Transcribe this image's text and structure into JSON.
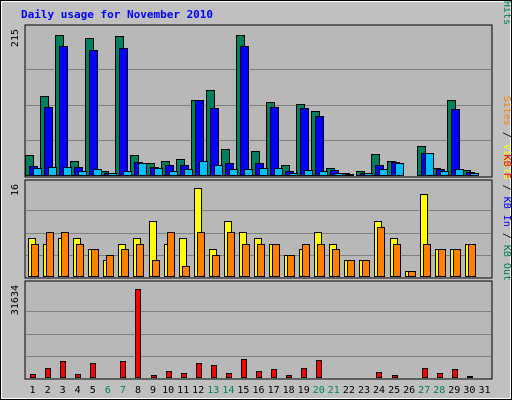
{
  "chart_data": {
    "type": "bar",
    "title": "Daily usage for November 2010",
    "colors": {
      "background": "#c0c0c0",
      "plot": "#b8b8b8",
      "title": "#0000ff",
      "hits": "#00805c",
      "files": "#0000ff",
      "pages": "#00c0ff",
      "visits": "#ffff00",
      "sites": "#ff8000",
      "kbytes": "#ff0000",
      "weekend_label": "#00805c",
      "weekday_label": "#000000"
    },
    "x": {
      "days": [
        "1",
        "2",
        "3",
        "4",
        "5",
        "6",
        "7",
        "8",
        "9",
        "10",
        "11",
        "12",
        "13",
        "14",
        "15",
        "16",
        "17",
        "18",
        "19",
        "20",
        "21",
        "22",
        "23",
        "24",
        "25",
        "26",
        "27",
        "28",
        "29",
        "30",
        "31"
      ],
      "weekend_days": [
        "6",
        "7",
        "13",
        "14",
        "20",
        "21",
        "27",
        "28"
      ]
    },
    "panels": [
      {
        "name": "hits-files-pages",
        "ymax_label": "215",
        "ylim": [
          0,
          215
        ],
        "axis_label": [
          {
            "text": "Pages",
            "color": "#00c0ff"
          },
          {
            "text": " / ",
            "color": "#000000"
          },
          {
            "text": "Files",
            "color": "#0000ff"
          },
          {
            "text": " / ",
            "color": "#000000"
          },
          {
            "text": "Hits",
            "color": "#00805c"
          }
        ],
        "series": [
          {
            "name": "Hits",
            "color": "#00805c",
            "values": [
              31,
              120,
              212,
              23,
              207,
              7,
              210,
              31,
              19,
              22,
              25,
              114,
              129,
              40,
              212,
              37,
              112,
              16,
              109,
              98,
              12,
              4,
              7,
              33,
              23,
              2,
              45,
              12,
              115,
              9,
              0
            ]
          },
          {
            "name": "Files",
            "color": "#0000ff",
            "values": [
              15,
              103,
              195,
              14,
              190,
              4,
              193,
              21,
              14,
              16,
              17,
              115,
              102,
              19,
              196,
              19,
              104,
              7,
              102,
              90,
              9,
              3,
              5,
              16,
              21,
              1,
              35,
              10,
              100,
              6,
              0
            ]
          },
          {
            "name": "Pages",
            "color": "#00c0ff",
            "values": [
              12,
              14,
              14,
              8,
              10,
              4,
              8,
              19,
              12,
              7,
              11,
              22,
              17,
              10,
              11,
              12,
              12,
              4,
              9,
              8,
              5,
              2,
              4,
              11,
              20,
              1,
              35,
              8,
              10,
              5,
              0
            ]
          }
        ]
      },
      {
        "name": "visits-sites",
        "ymax_label": "16",
        "ylim": [
          0,
          16
        ],
        "axis_label": [
          {
            "text": "Sites",
            "color": "#ff8000"
          },
          {
            "text": " / ",
            "color": "#000000"
          },
          {
            "text": "Visits",
            "color": "#ffff00"
          }
        ],
        "series": [
          {
            "name": "Visits",
            "color": "#ffff00",
            "values": [
              7,
              6,
              7,
              7,
              5,
              3,
              6,
              7,
              10,
              6,
              7,
              16,
              5,
              10,
              8,
              7,
              6,
              4,
              5,
              8,
              6,
              3,
              3,
              10,
              7,
              1,
              15,
              5,
              5,
              6,
              0
            ]
          },
          {
            "name": "Sites",
            "color": "#ff8000",
            "values": [
              6,
              8,
              8,
              6,
              5,
              4,
              5,
              6,
              3,
              8,
              2,
              8,
              4,
              8,
              6,
              6,
              6,
              4,
              6,
              6,
              5,
              3,
              3,
              9,
              6,
              1,
              6,
              5,
              5,
              6,
              0
            ]
          }
        ]
      },
      {
        "name": "kbytes",
        "ymax_label": "31634",
        "ylim": [
          0,
          31634
        ],
        "axis_label": [
          {
            "text": "KB F",
            "color": "#ff0000"
          },
          {
            "text": " / ",
            "color": "#000000"
          },
          {
            "text": "KB In",
            "color": "#0000ff"
          },
          {
            "text": " / ",
            "color": "#000000"
          },
          {
            "text": "KB Out",
            "color": "#00805c"
          }
        ],
        "series": [
          {
            "name": "KB F",
            "color": "#ff0000",
            "values": [
              1300,
              3600,
              5900,
              1400,
              5500,
              300,
              5900,
              31634,
              1000,
              2400,
              1600,
              5200,
              4500,
              1900,
              6600,
              2600,
              3300,
              1100,
              3700,
              6500,
              500,
              300,
              400,
              2200,
              1200,
              200,
              3700,
              1600,
              3200,
              600,
              0
            ]
          }
        ]
      }
    ]
  }
}
